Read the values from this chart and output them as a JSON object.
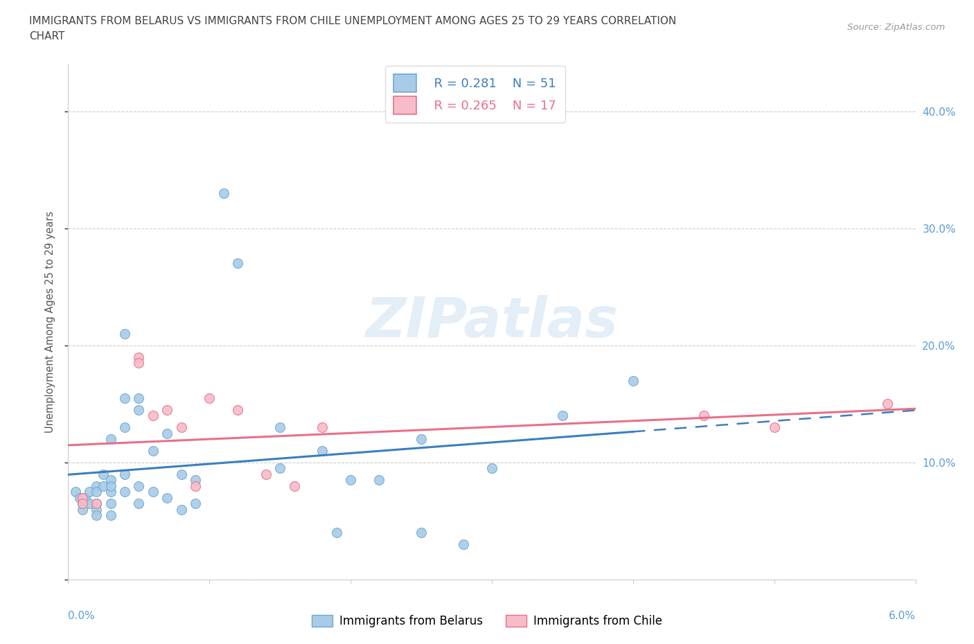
{
  "title_line1": "IMMIGRANTS FROM BELARUS VS IMMIGRANTS FROM CHILE UNEMPLOYMENT AMONG AGES 25 TO 29 YEARS CORRELATION",
  "title_line2": "CHART",
  "source": "Source: ZipAtlas.com",
  "ylabel": "Unemployment Among Ages 25 to 29 years",
  "yticks": [
    0.0,
    0.1,
    0.2,
    0.3,
    0.4
  ],
  "ytick_labels_left": [
    "",
    "",
    "",
    "",
    ""
  ],
  "ytick_labels_right": [
    "",
    "10.0%",
    "20.0%",
    "30.0%",
    "40.0%"
  ],
  "xlim": [
    0.0,
    0.06
  ],
  "ylim": [
    0.0,
    0.44
  ],
  "watermark": "ZIPatlas",
  "belarus_x": [
    0.0005,
    0.0008,
    0.001,
    0.001,
    0.0012,
    0.0015,
    0.0015,
    0.002,
    0.002,
    0.002,
    0.002,
    0.002,
    0.0025,
    0.0025,
    0.003,
    0.003,
    0.003,
    0.003,
    0.003,
    0.003,
    0.004,
    0.004,
    0.004,
    0.004,
    0.004,
    0.005,
    0.005,
    0.005,
    0.005,
    0.006,
    0.006,
    0.007,
    0.007,
    0.008,
    0.008,
    0.009,
    0.009,
    0.011,
    0.012,
    0.015,
    0.015,
    0.018,
    0.019,
    0.02,
    0.022,
    0.025,
    0.025,
    0.028,
    0.03,
    0.035,
    0.04
  ],
  "belarus_y": [
    0.075,
    0.07,
    0.065,
    0.06,
    0.07,
    0.075,
    0.065,
    0.08,
    0.075,
    0.065,
    0.06,
    0.055,
    0.09,
    0.08,
    0.085,
    0.075,
    0.065,
    0.055,
    0.08,
    0.12,
    0.21,
    0.155,
    0.13,
    0.09,
    0.075,
    0.155,
    0.145,
    0.08,
    0.065,
    0.11,
    0.075,
    0.125,
    0.07,
    0.09,
    0.06,
    0.085,
    0.065,
    0.33,
    0.27,
    0.13,
    0.095,
    0.11,
    0.04,
    0.085,
    0.085,
    0.12,
    0.04,
    0.03,
    0.095,
    0.14,
    0.17
  ],
  "chile_x": [
    0.001,
    0.001,
    0.002,
    0.005,
    0.005,
    0.006,
    0.007,
    0.008,
    0.009,
    0.01,
    0.012,
    0.014,
    0.016,
    0.018,
    0.045,
    0.05,
    0.058
  ],
  "chile_y": [
    0.07,
    0.065,
    0.065,
    0.19,
    0.185,
    0.14,
    0.145,
    0.13,
    0.08,
    0.155,
    0.145,
    0.09,
    0.08,
    0.13,
    0.14,
    0.13,
    0.15
  ],
  "belarus_scatter_color": "#A8CBE8",
  "belarus_scatter_edge": "#6FA8D0",
  "chile_scatter_color": "#F7BCC8",
  "chile_scatter_edge": "#E8708A",
  "belarus_line_color": "#3A7FBF",
  "chile_line_color": "#E8708A",
  "r_belarus": 0.281,
  "n_belarus": 51,
  "r_chile": 0.265,
  "n_chile": 17,
  "legend_label_belarus": "Immigrants from Belarus",
  "legend_label_chile": "Immigrants from Chile",
  "grid_color": "#CCCCCC",
  "background_color": "#FFFFFF",
  "title_color": "#444444",
  "axis_color": "#5B9BD5",
  "right_ytick_color": "#5B9BD5",
  "xtick_color": "#5B9BD5"
}
